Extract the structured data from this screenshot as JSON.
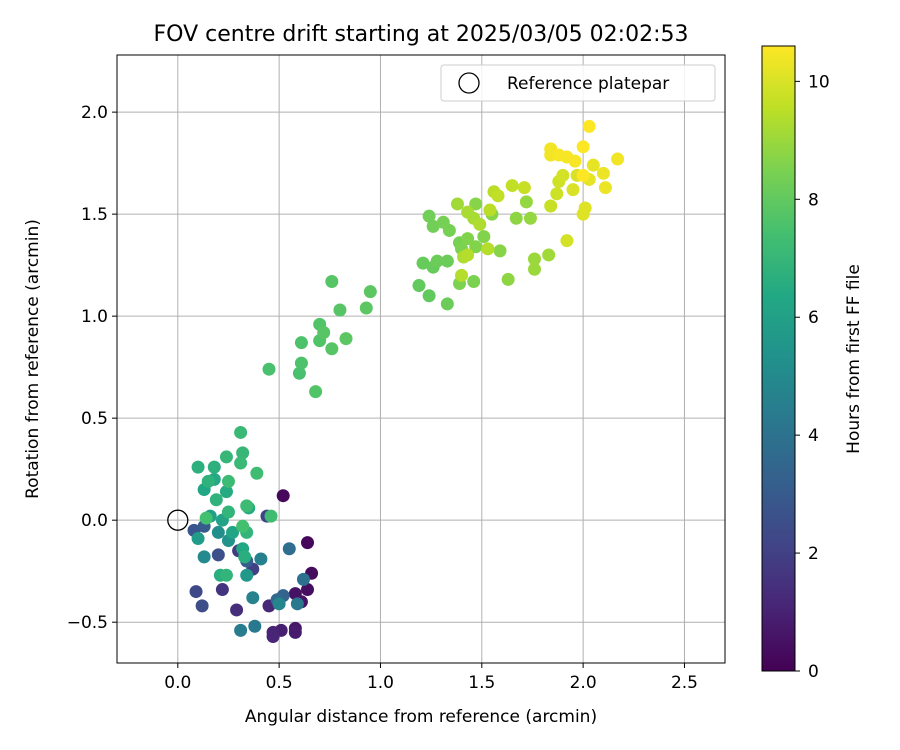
{
  "chart_data": {
    "type": "scatter",
    "title": "FOV centre drift starting at 2025/03/05 02:02:53",
    "xlabel": "Angular distance from reference (arcmin)",
    "ylabel": "Rotation from reference (arcmin)",
    "xlim": [
      -0.3,
      2.7
    ],
    "ylim": [
      -0.7,
      2.28
    ],
    "xticks": [
      0.0,
      0.5,
      1.0,
      1.5,
      2.0,
      2.5
    ],
    "xtick_labels": [
      "0.0",
      "0.5",
      "1.0",
      "1.5",
      "2.0",
      "2.5"
    ],
    "yticks": [
      -0.5,
      0.0,
      0.5,
      1.0,
      1.5,
      2.0
    ],
    "ytick_labels": [
      "−0.5",
      "0.0",
      "0.5",
      "1.0",
      "1.5",
      "2.0"
    ],
    "grid": true,
    "colormap": "viridis",
    "colorbar": {
      "label": "Hours from first FF file",
      "range": [
        0,
        10.6
      ],
      "ticks": [
        0,
        2,
        4,
        6,
        8,
        10
      ],
      "tick_labels": [
        "0",
        "2",
        "4",
        "6",
        "8",
        "10"
      ]
    },
    "legend": {
      "position": "top-right",
      "entries": [
        "Reference platepar"
      ]
    },
    "reference_point": {
      "x": 0.0,
      "y": 0.0
    },
    "series": [
      {
        "points": [
          {
            "x": 0.52,
            "y": 0.12,
            "c": 0.2
          },
          {
            "x": 0.64,
            "y": -0.11,
            "c": 0.2
          },
          {
            "x": 0.66,
            "y": -0.26,
            "c": 0.3
          },
          {
            "x": 0.64,
            "y": -0.34,
            "c": 0.4
          },
          {
            "x": 0.58,
            "y": -0.36,
            "c": 0.5
          },
          {
            "x": 0.61,
            "y": -0.4,
            "c": 0.6
          },
          {
            "x": 0.58,
            "y": -0.53,
            "c": 0.7
          },
          {
            "x": 0.58,
            "y": -0.55,
            "c": 0.8
          },
          {
            "x": 0.51,
            "y": -0.54,
            "c": 0.9
          },
          {
            "x": 0.47,
            "y": -0.55,
            "c": 1.0
          },
          {
            "x": 0.47,
            "y": -0.57,
            "c": 1.1
          },
          {
            "x": 0.45,
            "y": -0.42,
            "c": 1.2
          },
          {
            "x": 0.29,
            "y": -0.44,
            "c": 1.4
          },
          {
            "x": 0.22,
            "y": -0.34,
            "c": 1.6
          },
          {
            "x": 0.3,
            "y": -0.15,
            "c": 1.8
          },
          {
            "x": 0.37,
            "y": -0.24,
            "c": 2.0
          },
          {
            "x": 0.44,
            "y": 0.02,
            "c": 2.1
          },
          {
            "x": 0.09,
            "y": -0.35,
            "c": 2.3
          },
          {
            "x": 0.12,
            "y": -0.42,
            "c": 2.5
          },
          {
            "x": 0.2,
            "y": -0.17,
            "c": 2.6
          },
          {
            "x": 0.08,
            "y": -0.05,
            "c": 2.8
          },
          {
            "x": 0.13,
            "y": -0.03,
            "c": 3.0
          },
          {
            "x": 0.34,
            "y": -0.2,
            "c": 3.2
          },
          {
            "x": 0.52,
            "y": -0.37,
            "c": 3.4
          },
          {
            "x": 0.49,
            "y": -0.39,
            "c": 3.6
          },
          {
            "x": 0.55,
            "y": -0.14,
            "c": 3.8
          },
          {
            "x": 0.62,
            "y": -0.29,
            "c": 4.0
          },
          {
            "x": 0.59,
            "y": -0.41,
            "c": 4.2
          },
          {
            "x": 0.38,
            "y": -0.52,
            "c": 4.3
          },
          {
            "x": 0.31,
            "y": -0.54,
            "c": 4.4
          },
          {
            "x": 0.41,
            "y": -0.19,
            "c": 4.6
          },
          {
            "x": 0.37,
            "y": -0.38,
            "c": 4.7
          },
          {
            "x": 0.5,
            "y": -0.41,
            "c": 4.8
          },
          {
            "x": 0.13,
            "y": -0.18,
            "c": 5.0
          },
          {
            "x": 0.2,
            "y": -0.06,
            "c": 5.2
          },
          {
            "x": 0.25,
            "y": -0.1,
            "c": 5.4
          },
          {
            "x": 0.34,
            "y": -0.27,
            "c": 5.6
          },
          {
            "x": 0.1,
            "y": -0.09,
            "c": 5.8
          },
          {
            "x": 0.16,
            "y": 0.02,
            "c": 6.0
          },
          {
            "x": 0.22,
            "y": 0.0,
            "c": 6.1
          },
          {
            "x": 0.27,
            "y": -0.06,
            "c": 6.2
          },
          {
            "x": 0.32,
            "y": -0.14,
            "c": 6.3
          },
          {
            "x": 0.13,
            "y": 0.15,
            "c": 6.3
          },
          {
            "x": 0.18,
            "y": 0.2,
            "c": 6.4
          },
          {
            "x": 0.24,
            "y": 0.14,
            "c": 6.5
          },
          {
            "x": 0.35,
            "y": 0.06,
            "c": 6.5
          },
          {
            "x": 0.21,
            "y": -0.27,
            "c": 6.6
          },
          {
            "x": 0.33,
            "y": -0.18,
            "c": 6.6
          },
          {
            "x": 0.1,
            "y": 0.26,
            "c": 6.7
          },
          {
            "x": 0.18,
            "y": 0.26,
            "c": 6.7
          },
          {
            "x": 0.15,
            "y": 0.19,
            "c": 6.8
          },
          {
            "x": 0.19,
            "y": 0.1,
            "c": 6.8
          },
          {
            "x": 0.25,
            "y": 0.04,
            "c": 6.9
          },
          {
            "x": 0.34,
            "y": -0.06,
            "c": 6.9
          },
          {
            "x": 0.24,
            "y": -0.27,
            "c": 6.9
          },
          {
            "x": 0.24,
            "y": 0.31,
            "c": 7.0
          },
          {
            "x": 0.32,
            "y": 0.33,
            "c": 7.0
          },
          {
            "x": 0.31,
            "y": 0.43,
            "c": 7.1
          },
          {
            "x": 0.31,
            "y": 0.28,
            "c": 7.1
          },
          {
            "x": 0.25,
            "y": 0.19,
            "c": 7.2
          },
          {
            "x": 0.34,
            "y": 0.07,
            "c": 7.2
          },
          {
            "x": 0.39,
            "y": 0.23,
            "c": 7.3
          },
          {
            "x": 0.46,
            "y": 0.02,
            "c": 7.3
          },
          {
            "x": 0.32,
            "y": -0.03,
            "c": 7.4
          },
          {
            "x": 0.14,
            "y": 0.01,
            "c": 7.4
          },
          {
            "x": 0.45,
            "y": 0.74,
            "c": 7.5
          },
          {
            "x": 0.6,
            "y": 0.72,
            "c": 7.5
          },
          {
            "x": 0.61,
            "y": 0.77,
            "c": 7.6
          },
          {
            "x": 0.61,
            "y": 0.87,
            "c": 7.6
          },
          {
            "x": 0.68,
            "y": 0.63,
            "c": 7.7
          },
          {
            "x": 0.7,
            "y": 0.88,
            "c": 7.7
          },
          {
            "x": 0.7,
            "y": 0.96,
            "c": 7.7
          },
          {
            "x": 0.72,
            "y": 0.92,
            "c": 7.8
          },
          {
            "x": 0.76,
            "y": 0.84,
            "c": 7.8
          },
          {
            "x": 0.76,
            "y": 1.17,
            "c": 7.8
          },
          {
            "x": 0.8,
            "y": 1.03,
            "c": 7.8
          },
          {
            "x": 0.83,
            "y": 0.89,
            "c": 7.9
          },
          {
            "x": 0.93,
            "y": 1.04,
            "c": 7.9
          },
          {
            "x": 0.95,
            "y": 1.12,
            "c": 7.9
          },
          {
            "x": 1.19,
            "y": 1.15,
            "c": 8.0
          },
          {
            "x": 1.24,
            "y": 1.1,
            "c": 8.0
          },
          {
            "x": 1.21,
            "y": 1.26,
            "c": 8.1
          },
          {
            "x": 1.26,
            "y": 1.24,
            "c": 8.1
          },
          {
            "x": 1.28,
            "y": 1.27,
            "c": 8.2
          },
          {
            "x": 1.33,
            "y": 1.06,
            "c": 8.2
          },
          {
            "x": 1.33,
            "y": 1.27,
            "c": 8.2
          },
          {
            "x": 1.24,
            "y": 1.49,
            "c": 8.3
          },
          {
            "x": 1.26,
            "y": 1.44,
            "c": 8.3
          },
          {
            "x": 1.31,
            "y": 1.46,
            "c": 8.4
          },
          {
            "x": 1.34,
            "y": 1.42,
            "c": 8.4
          },
          {
            "x": 1.39,
            "y": 1.36,
            "c": 8.4
          },
          {
            "x": 1.4,
            "y": 1.33,
            "c": 8.5
          },
          {
            "x": 1.39,
            "y": 1.16,
            "c": 8.5
          },
          {
            "x": 1.46,
            "y": 1.17,
            "c": 8.5
          },
          {
            "x": 1.43,
            "y": 1.38,
            "c": 8.6
          },
          {
            "x": 1.47,
            "y": 1.34,
            "c": 8.6
          },
          {
            "x": 1.51,
            "y": 1.39,
            "c": 8.6
          },
          {
            "x": 1.55,
            "y": 1.5,
            "c": 8.7
          },
          {
            "x": 1.47,
            "y": 1.55,
            "c": 8.7
          },
          {
            "x": 1.59,
            "y": 1.32,
            "c": 8.7
          },
          {
            "x": 1.63,
            "y": 1.18,
            "c": 8.8
          },
          {
            "x": 1.67,
            "y": 1.48,
            "c": 8.8
          },
          {
            "x": 1.72,
            "y": 1.56,
            "c": 8.9
          },
          {
            "x": 1.74,
            "y": 1.48,
            "c": 8.9
          },
          {
            "x": 1.76,
            "y": 1.28,
            "c": 9.0
          },
          {
            "x": 1.76,
            "y": 1.23,
            "c": 9.0
          },
          {
            "x": 1.83,
            "y": 1.3,
            "c": 9.1
          },
          {
            "x": 1.38,
            "y": 1.55,
            "c": 9.1
          },
          {
            "x": 1.43,
            "y": 1.51,
            "c": 9.2
          },
          {
            "x": 1.46,
            "y": 1.48,
            "c": 9.2
          },
          {
            "x": 1.49,
            "y": 1.45,
            "c": 9.3
          },
          {
            "x": 1.41,
            "y": 1.29,
            "c": 9.3
          },
          {
            "x": 1.43,
            "y": 1.3,
            "c": 9.4
          },
          {
            "x": 1.4,
            "y": 1.2,
            "c": 9.4
          },
          {
            "x": 1.53,
            "y": 1.33,
            "c": 9.4
          },
          {
            "x": 1.54,
            "y": 1.52,
            "c": 9.5
          },
          {
            "x": 1.56,
            "y": 1.61,
            "c": 9.5
          },
          {
            "x": 1.58,
            "y": 1.59,
            "c": 9.6
          },
          {
            "x": 1.65,
            "y": 1.64,
            "c": 9.6
          },
          {
            "x": 1.71,
            "y": 1.63,
            "c": 9.7
          },
          {
            "x": 1.84,
            "y": 1.54,
            "c": 9.7
          },
          {
            "x": 1.87,
            "y": 1.6,
            "c": 9.8
          },
          {
            "x": 1.88,
            "y": 1.66,
            "c": 9.8
          },
          {
            "x": 1.9,
            "y": 1.69,
            "c": 9.9
          },
          {
            "x": 1.92,
            "y": 1.37,
            "c": 9.9
          },
          {
            "x": 1.95,
            "y": 1.62,
            "c": 10.0
          },
          {
            "x": 1.97,
            "y": 1.69,
            "c": 10.0
          },
          {
            "x": 2.0,
            "y": 1.5,
            "c": 10.1
          },
          {
            "x": 2.01,
            "y": 1.53,
            "c": 10.1
          },
          {
            "x": 2.03,
            "y": 1.67,
            "c": 10.2
          },
          {
            "x": 2.05,
            "y": 1.74,
            "c": 10.2
          },
          {
            "x": 2.1,
            "y": 1.7,
            "c": 10.3
          },
          {
            "x": 2.11,
            "y": 1.63,
            "c": 10.3
          },
          {
            "x": 2.17,
            "y": 1.77,
            "c": 10.4
          },
          {
            "x": 1.84,
            "y": 1.82,
            "c": 10.4
          },
          {
            "x": 1.84,
            "y": 1.79,
            "c": 10.4
          },
          {
            "x": 1.88,
            "y": 1.79,
            "c": 10.5
          },
          {
            "x": 1.92,
            "y": 1.78,
            "c": 10.5
          },
          {
            "x": 1.96,
            "y": 1.76,
            "c": 10.5
          },
          {
            "x": 2.0,
            "y": 1.83,
            "c": 10.6
          },
          {
            "x": 2.03,
            "y": 1.93,
            "c": 10.6
          },
          {
            "x": 2.0,
            "y": 1.69,
            "c": 10.6
          }
        ]
      }
    ]
  }
}
